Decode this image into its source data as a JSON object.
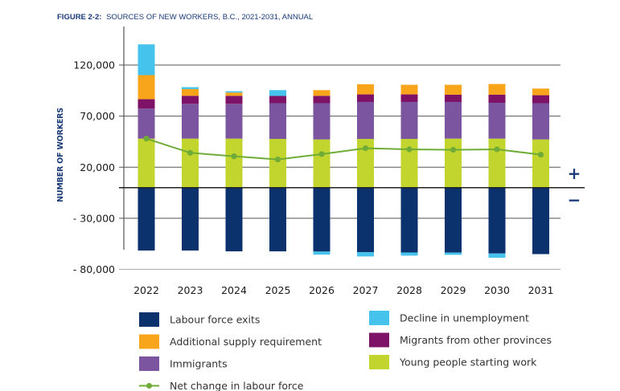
{
  "chart_data": {
    "type": "bar",
    "stacked": true,
    "title_prefix": "FIGURE 2-2:",
    "title": "SOURCES OF NEW WORKERS, B.C., 2021-2031, ANNUAL",
    "xlabel": "",
    "ylabel": "NUMBER OF WORKERS",
    "ylim": [
      -80000,
      140000
    ],
    "yticks": [
      120000,
      70000,
      20000,
      -30000,
      -80000
    ],
    "ytick_labels": [
      "120,000",
      "70,000",
      "20,000",
      "- 30,000",
      "- 80,000"
    ],
    "grid": true,
    "categories": [
      "2022",
      "2023",
      "2024",
      "2025",
      "2026",
      "2027",
      "2028",
      "2029",
      "2030",
      "2031"
    ],
    "series": [
      {
        "name": "Labour force exits",
        "color": "#0b326c",
        "values": [
          -61600,
          -61600,
          -62400,
          -62400,
          -62600,
          -63200,
          -63500,
          -63500,
          -64500,
          -65100
        ]
      },
      {
        "name": "Young people starting work",
        "color": "#c2d52e",
        "values": [
          48000,
          48000,
          48000,
          47700,
          47200,
          47700,
          47700,
          48000,
          48000,
          47200
        ]
      },
      {
        "name": "Immigrants",
        "color": "#7b559f",
        "values": [
          29400,
          34100,
          34100,
          35000,
          35500,
          36200,
          36200,
          35900,
          35100,
          35500
        ]
      },
      {
        "name": "Migrants from other provinces",
        "color": "#7d1266",
        "values": [
          9200,
          7800,
          7800,
          7100,
          7200,
          7400,
          7400,
          7100,
          7900,
          7800
        ]
      },
      {
        "name": "Additional supply requirement",
        "color": "#f9a51b",
        "values": [
          23600,
          6600,
          3200,
          0,
          5600,
          9900,
          9400,
          9700,
          10500,
          6500
        ]
      },
      {
        "name": "Decline in unemployment",
        "color": "#46c3ec",
        "values": [
          30100,
          1900,
          1300,
          5700,
          -3000,
          -4200,
          -3100,
          -2300,
          -4200,
          0
        ]
      }
    ],
    "line": {
      "name": "Net change in labour force",
      "color": "#6fac37",
      "values": [
        48000,
        34100,
        30700,
        27600,
        32800,
        38600,
        37500,
        37000,
        37500,
        32300
      ]
    },
    "annotations": {
      "plus": "+",
      "minus": "−"
    },
    "legend": {
      "placement": "bottom",
      "left": [
        {
          "label": "Labour force exits",
          "color": "#0b326c",
          "kind": "box"
        },
        {
          "label": "Additional supply requirement",
          "color": "#f9a51b",
          "kind": "box"
        },
        {
          "label": "Immigrants",
          "color": "#7b559f",
          "kind": "box"
        },
        {
          "label": "Net change in labour force",
          "color": "#6fac37",
          "kind": "line"
        }
      ],
      "right": [
        {
          "label": "Decline in unemployment",
          "color": "#46c3ec",
          "kind": "box"
        },
        {
          "label": "Migrants from other provinces",
          "color": "#7d1266",
          "kind": "box"
        },
        {
          "label": "Young people starting work",
          "color": "#c2d52e",
          "kind": "box"
        }
      ]
    }
  }
}
